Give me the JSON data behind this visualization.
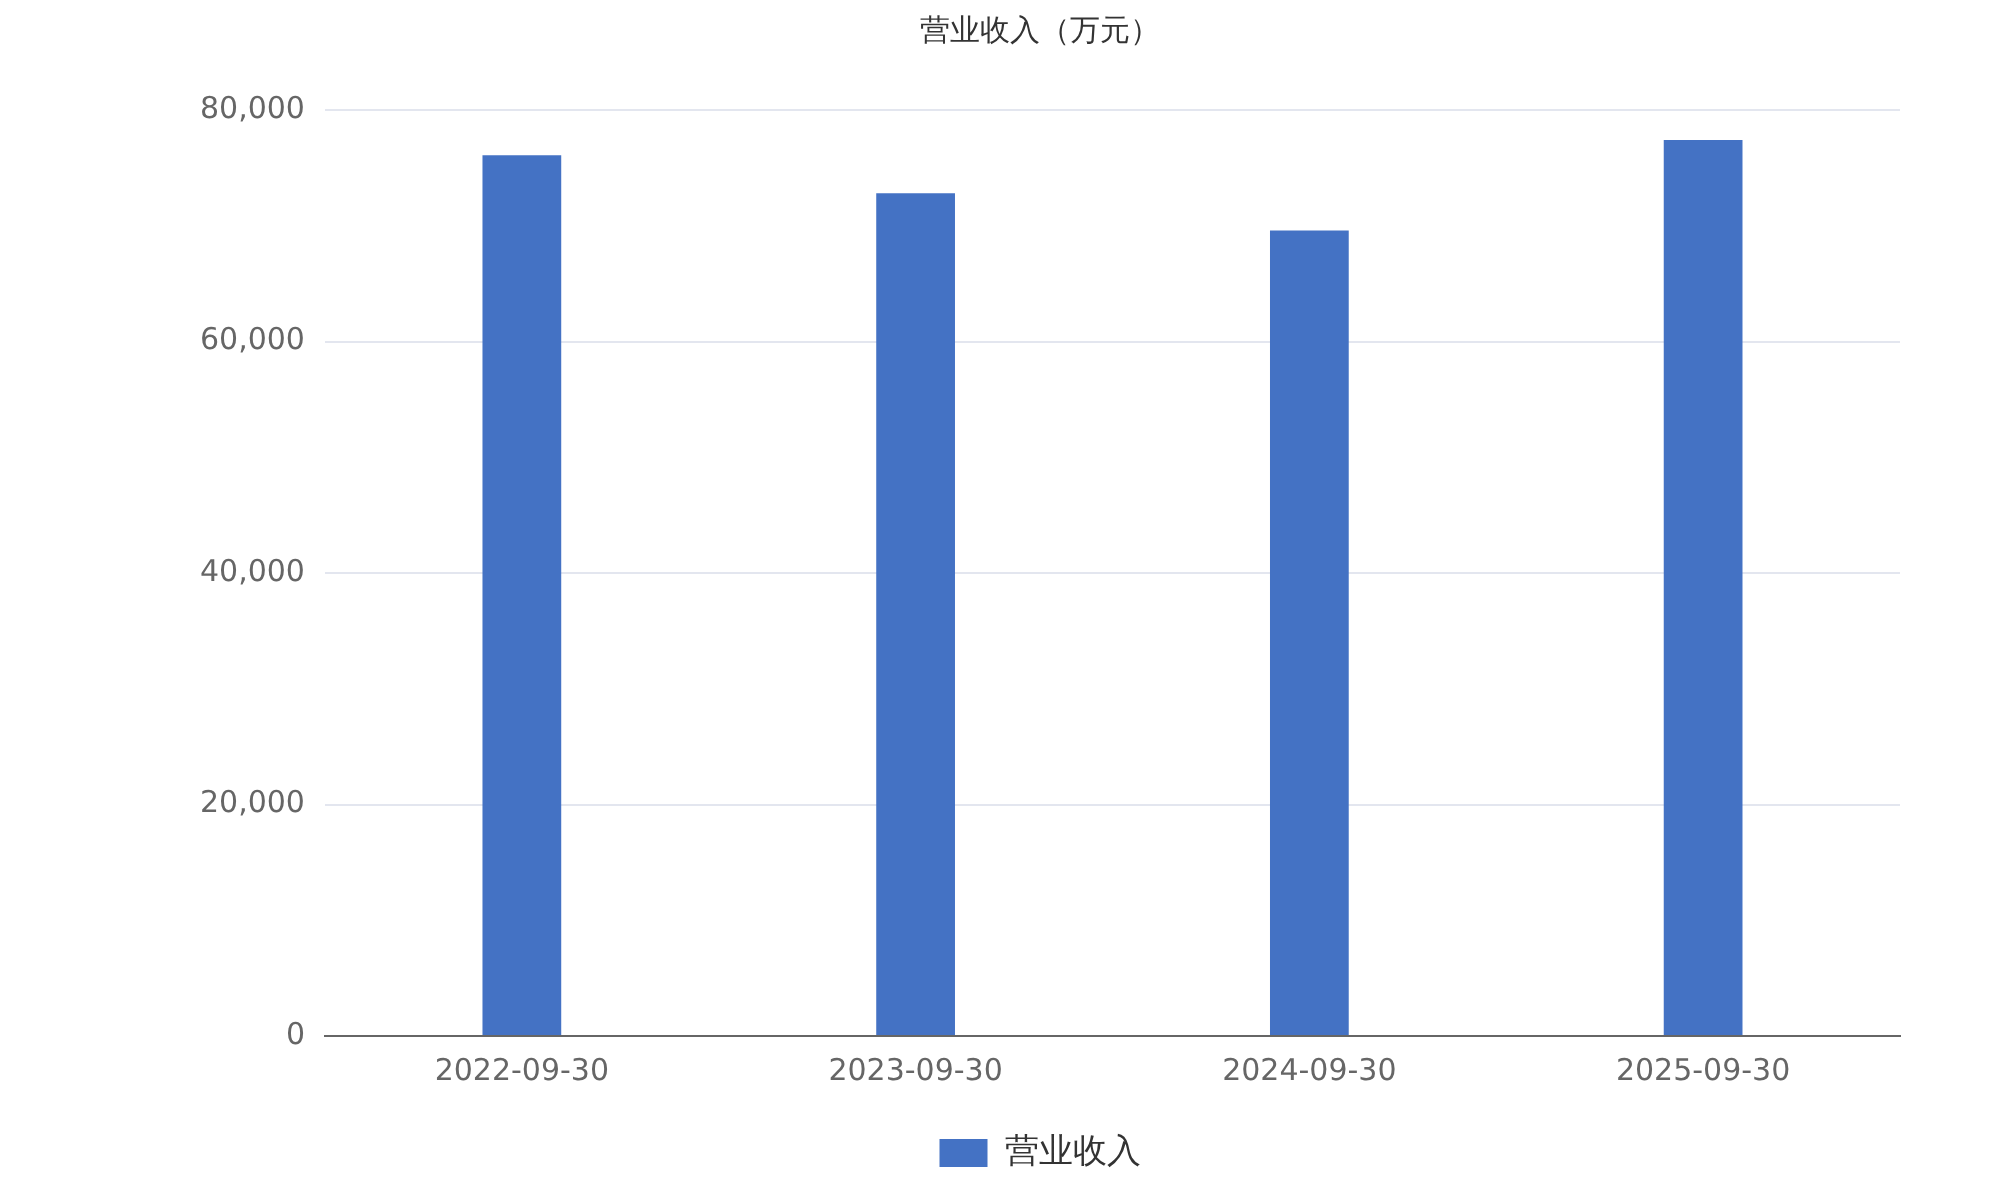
{
  "chart_data": {
    "type": "bar",
    "title": "营业收入（万元）",
    "categories": [
      "2022-09-30",
      "2023-09-30",
      "2024-09-30",
      "2025-09-30"
    ],
    "series": [
      {
        "name": "营业收入",
        "color": "#4472c4",
        "values": [
          76100,
          72800,
          69600,
          77400
        ]
      }
    ],
    "ylim": [
      0,
      80000
    ],
    "yticks": [
      {
        "value": 0,
        "label": "0"
      },
      {
        "value": 20000,
        "label": "20,000"
      },
      {
        "value": 40000,
        "label": "40,000"
      },
      {
        "value": 60000,
        "label": "60,000"
      },
      {
        "value": 80000,
        "label": "80,000"
      }
    ],
    "grid": "y",
    "legend": "bottom"
  }
}
